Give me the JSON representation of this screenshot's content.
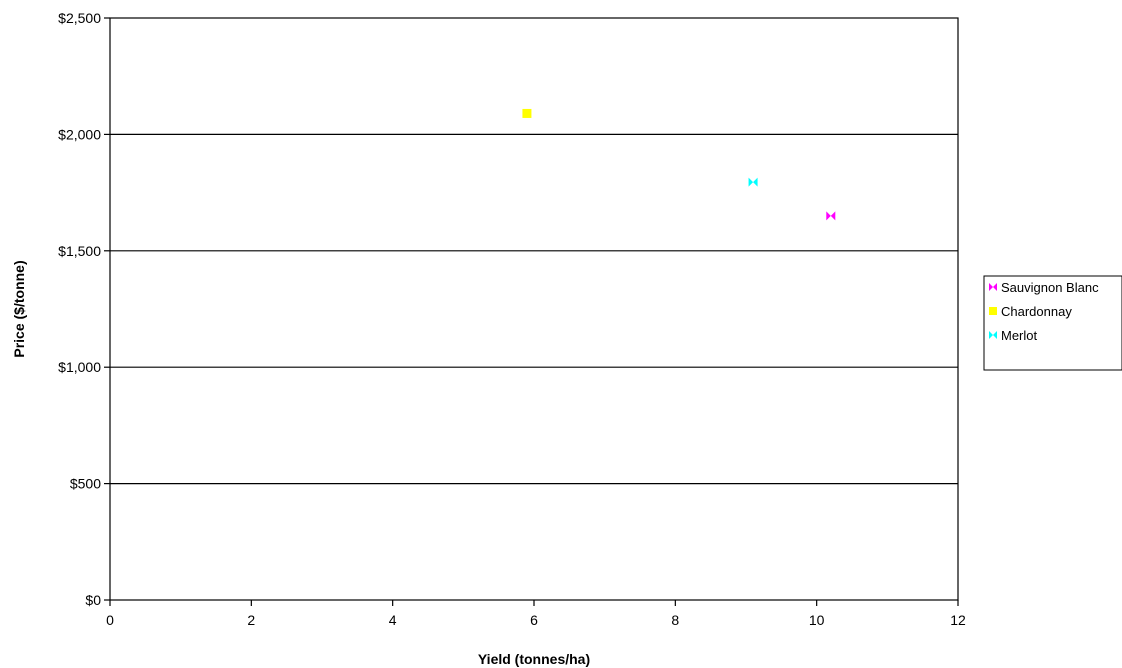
{
  "chart_data": {
    "type": "scatter",
    "title": "",
    "xlabel": "Yield (tonnes/ha)",
    "ylabel": "Price ($/tonne)",
    "xlim": [
      0,
      12
    ],
    "ylim": [
      0,
      2500
    ],
    "x_ticks": [
      0,
      2,
      4,
      6,
      8,
      10,
      12
    ],
    "y_ticks": [
      0,
      500,
      1000,
      1500,
      2000,
      2500
    ],
    "y_tick_labels": [
      "$0",
      "$500",
      "$1,000",
      "$1,500",
      "$2,000",
      "$2,500"
    ],
    "grid": "horizontal",
    "legend_position": "right",
    "series": [
      {
        "name": "Sauvignon Blanc",
        "color": "#ff00ff",
        "marker": "bowtie",
        "points": [
          {
            "x": 10.2,
            "y": 1650
          }
        ]
      },
      {
        "name": "Chardonnay",
        "color": "#ffff00",
        "marker": "square",
        "points": [
          {
            "x": 5.9,
            "y": 2090
          }
        ]
      },
      {
        "name": "Merlot",
        "color": "#00ffff",
        "marker": "bowtie",
        "points": [
          {
            "x": 9.1,
            "y": 1795
          }
        ]
      }
    ]
  }
}
